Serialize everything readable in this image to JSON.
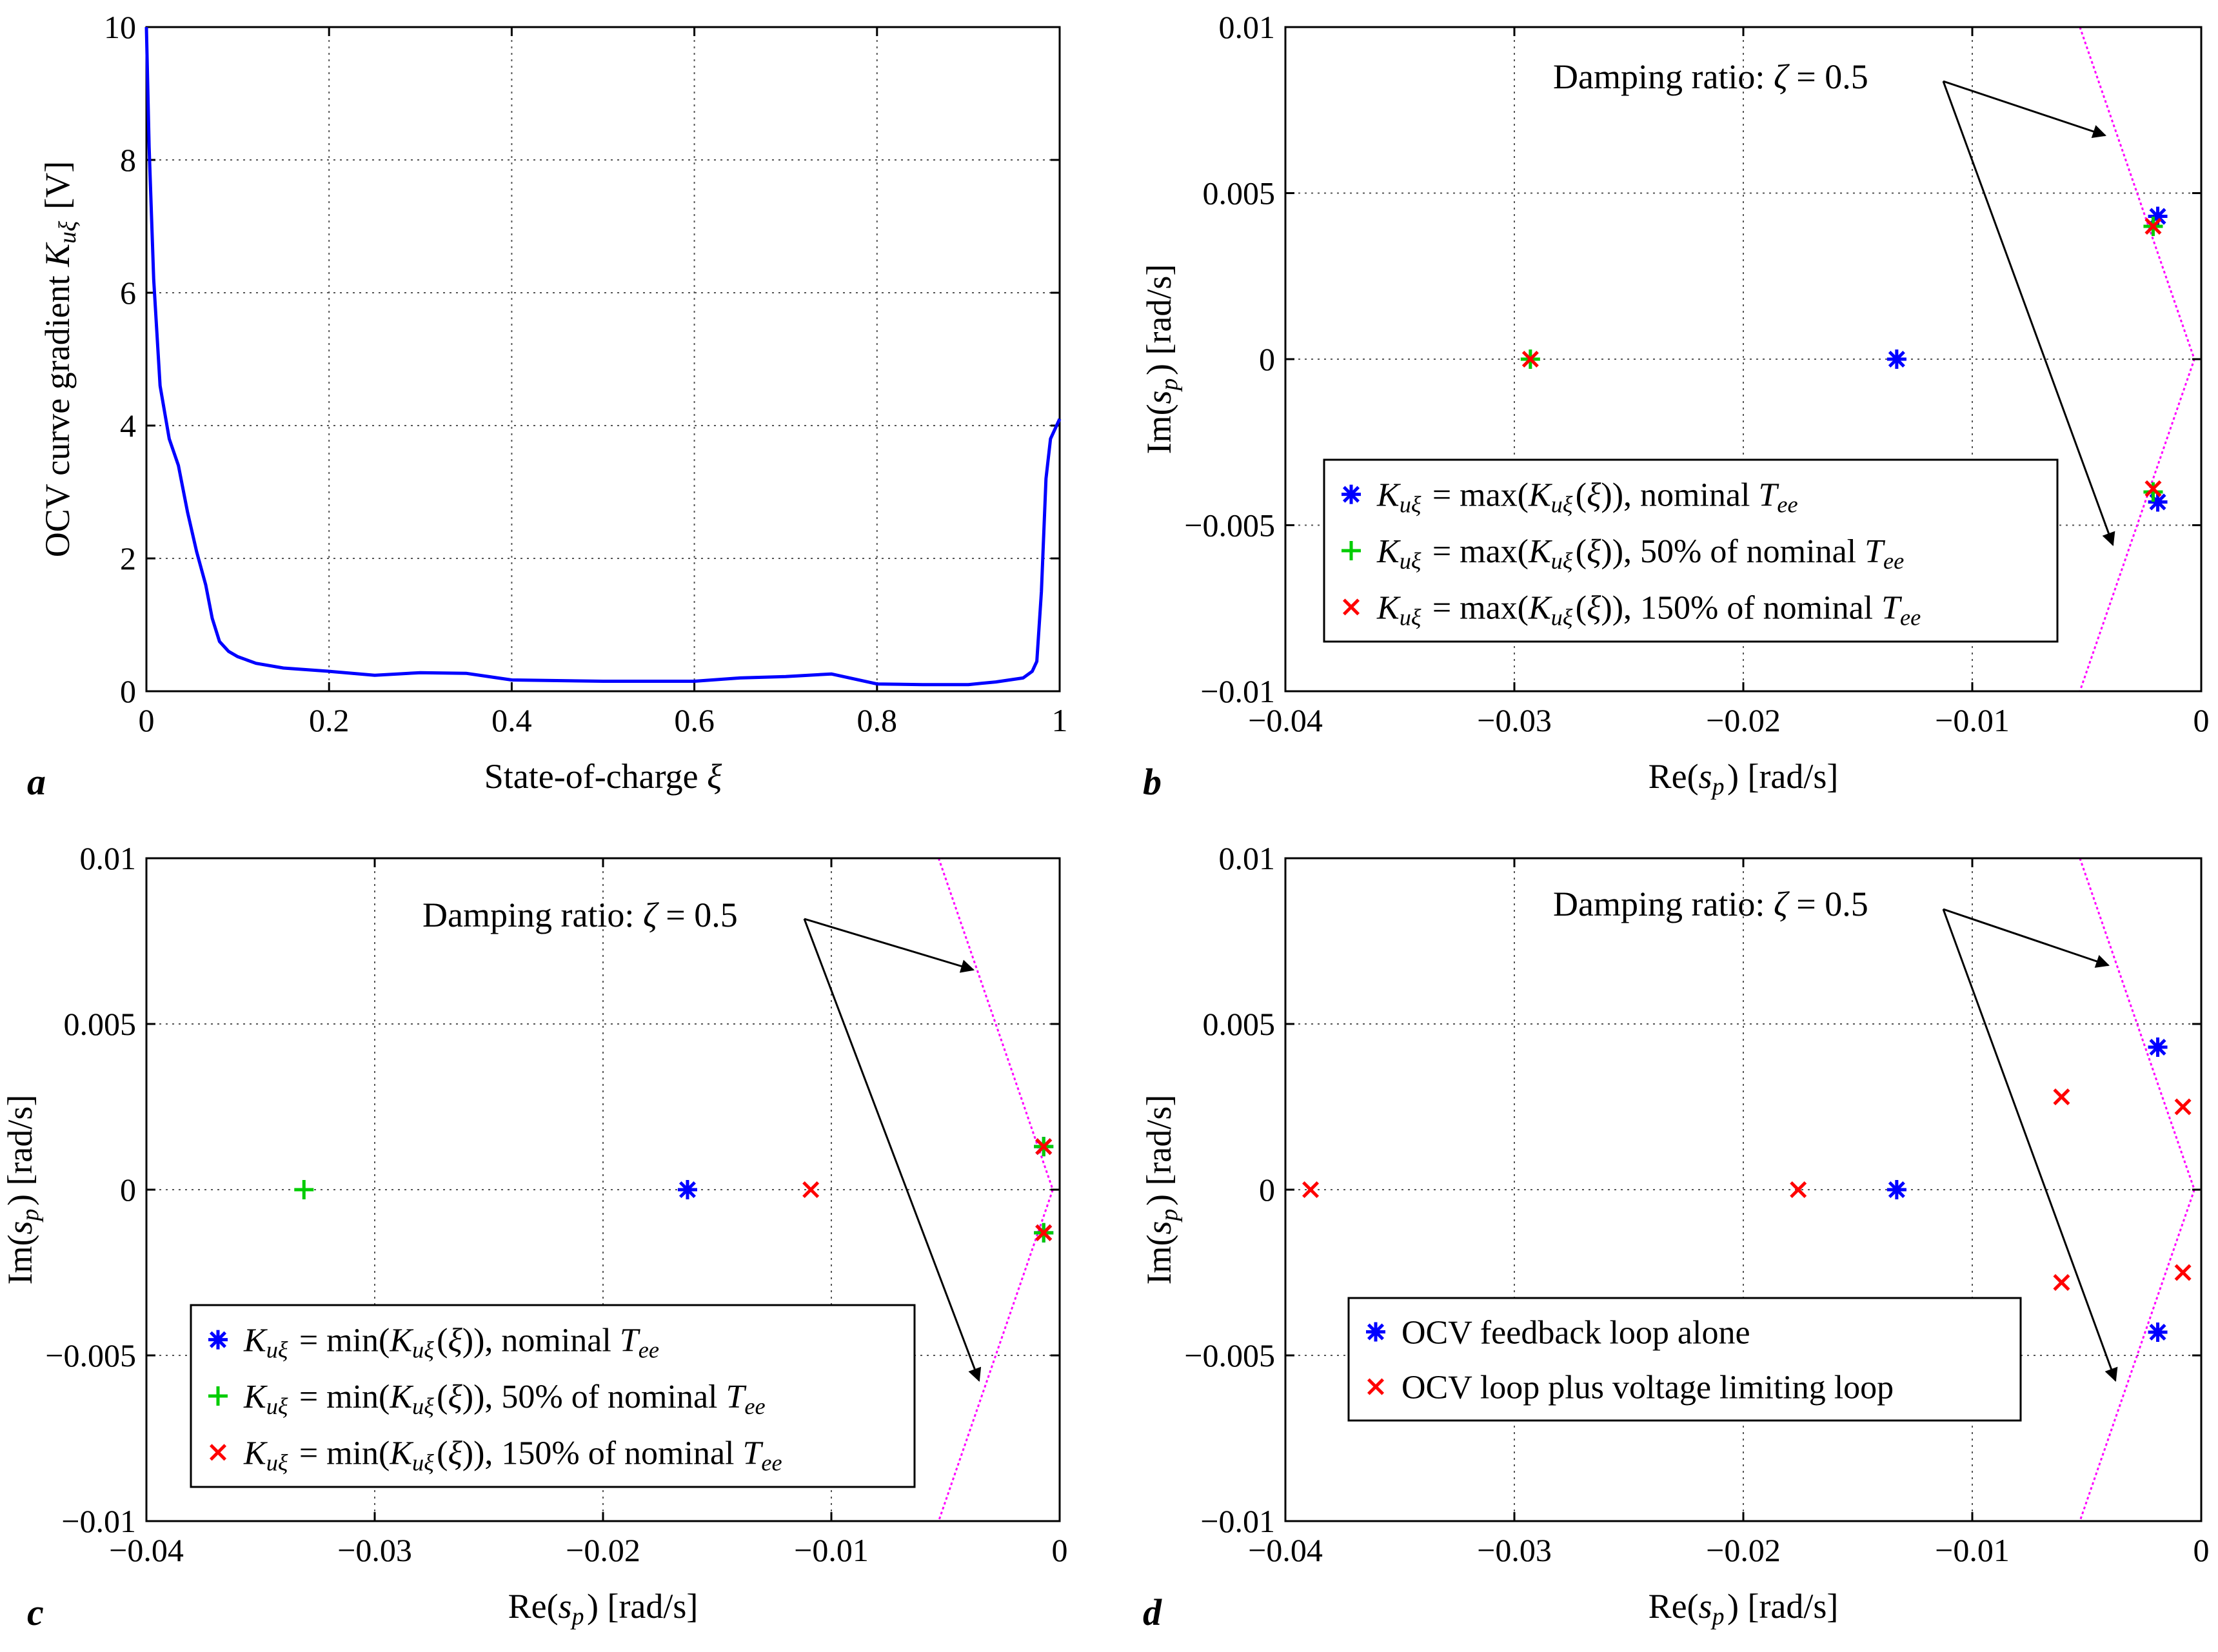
{
  "figure": {
    "panel_labels": [
      "a",
      "b",
      "c",
      "d"
    ]
  },
  "chart_data": [
    {
      "panel": "a",
      "type": "line",
      "xlabel": "State-of-charge ξ",
      "ylabel": "OCV curve gradient K_uξ [V]",
      "xlim": [
        0,
        1
      ],
      "ylim": [
        0,
        10
      ],
      "xticks": [
        0,
        0.2,
        0.4,
        0.6,
        0.8,
        1
      ],
      "xtick_labels": [
        "0",
        "0.2",
        "0.4",
        "0.6",
        "0.8",
        "1"
      ],
      "yticks": [
        0,
        2,
        4,
        6,
        8,
        10
      ],
      "ytick_labels": [
        "0",
        "2",
        "4",
        "6",
        "8",
        "10"
      ],
      "grid": true,
      "series": [
        {
          "color": "#0000ff",
          "x": [
            0,
            0.003,
            0.008,
            0.015,
            0.025,
            0.035,
            0.045,
            0.055,
            0.065,
            0.072,
            0.08,
            0.09,
            0.1,
            0.12,
            0.15,
            0.2,
            0.25,
            0.3,
            0.35,
            0.4,
            0.5,
            0.6,
            0.65,
            0.7,
            0.75,
            0.8,
            0.85,
            0.9,
            0.93,
            0.96,
            0.97,
            0.975,
            0.98,
            0.985,
            0.99,
            1
          ],
          "y": [
            10,
            8.2,
            6.2,
            4.6,
            3.8,
            3.4,
            2.7,
            2.1,
            1.6,
            1.1,
            0.75,
            0.6,
            0.52,
            0.42,
            0.35,
            0.3,
            0.24,
            0.28,
            0.27,
            0.17,
            0.15,
            0.15,
            0.2,
            0.22,
            0.26,
            0.11,
            0.1,
            0.1,
            0.14,
            0.2,
            0.3,
            0.45,
            1.5,
            3.2,
            3.8,
            4.1
          ]
        }
      ]
    },
    {
      "panel": "b",
      "type": "scatter",
      "xlabel": "Re(s_p) [rad/s]",
      "ylabel": "Im(s_p) [rad/s]",
      "xlim": [
        -0.04,
        0
      ],
      "ylim": [
        -0.01,
        0.01
      ],
      "xticks": [
        -0.04,
        -0.03,
        -0.02,
        -0.01,
        0
      ],
      "xtick_labels": [
        "−0.04",
        "−0.03",
        "−0.02",
        "−0.01",
        "0"
      ],
      "yticks": [
        -0.01,
        -0.005,
        0,
        0.005,
        0.01
      ],
      "ytick_labels": [
        "−0.01",
        "−0.005",
        "0",
        "0.005",
        "0.01"
      ],
      "grid": true,
      "annotation": "Damping ratio: ζ = 0.5",
      "damping_line": {
        "color": "#ff00ff",
        "x": [
          -0.0053,
          -0.0003,
          -0.0053
        ],
        "y": [
          0.01,
          0,
          -0.01
        ]
      },
      "legend_position": "lower-right",
      "series": [
        {
          "name": "K_uξ = max(K_uξ(ξ)), nominal T_ee",
          "marker": "asterisk",
          "color": "#0000ff",
          "x": [
            -0.0133,
            -0.0019,
            -0.0019
          ],
          "y": [
            0,
            0.0043,
            -0.0043
          ]
        },
        {
          "name": "K_uξ = max(K_uξ(ξ)), 50% of nominal T_ee",
          "marker": "plus",
          "color": "#00cc00",
          "x": [
            -0.0293,
            -0.0021,
            -0.0021
          ],
          "y": [
            0,
            0.004,
            -0.004
          ]
        },
        {
          "name": "K_uξ = max(K_uξ(ξ)), 150% of nominal T_ee",
          "marker": "cross",
          "color": "#ff0000",
          "x": [
            -0.0293,
            -0.0021,
            -0.0021
          ],
          "y": [
            0,
            0.004,
            -0.0039
          ]
        }
      ]
    },
    {
      "panel": "c",
      "type": "scatter",
      "xlabel": "Re(s_p) [rad/s]",
      "ylabel": "Im(s_p) [rad/s]",
      "xlim": [
        -0.04,
        0
      ],
      "ylim": [
        -0.01,
        0.01
      ],
      "xticks": [
        -0.04,
        -0.03,
        -0.02,
        -0.01,
        0
      ],
      "xtick_labels": [
        "−0.04",
        "−0.03",
        "−0.02",
        "−0.01",
        "0"
      ],
      "yticks": [
        -0.01,
        -0.005,
        0,
        0.005,
        0.01
      ],
      "ytick_labels": [
        "−0.01",
        "−0.005",
        "0",
        "0.005",
        "0.01"
      ],
      "grid": true,
      "annotation": "Damping ratio: ζ = 0.5",
      "damping_line": {
        "color": "#ff00ff",
        "x": [
          -0.0053,
          -0.0003,
          -0.0053
        ],
        "y": [
          0.01,
          0,
          -0.01
        ]
      },
      "legend_position": "lower-left",
      "series": [
        {
          "name": "K_uξ = min(K_uξ(ξ)), nominal T_ee",
          "marker": "asterisk",
          "color": "#0000ff",
          "x": [
            -0.0163,
            -0.0007,
            -0.0007
          ],
          "y": [
            0,
            0.0013,
            -0.0013
          ]
        },
        {
          "name": "K_uξ = min(K_uξ(ξ)), 50% of nominal T_ee",
          "marker": "plus",
          "color": "#00cc00",
          "x": [
            -0.0331,
            -0.0007,
            -0.0007
          ],
          "y": [
            0,
            0.0013,
            -0.0013
          ]
        },
        {
          "name": "K_uξ = min(K_uξ(ξ)), 150% of nominal T_ee",
          "marker": "cross",
          "color": "#ff0000",
          "x": [
            -0.0109,
            -0.0007,
            -0.0007
          ],
          "y": [
            0,
            0.0013,
            -0.0013
          ]
        }
      ]
    },
    {
      "panel": "d",
      "type": "scatter",
      "xlabel": "Re(s_p) [rad/s]",
      "ylabel": "Im(s_p) [rad/s]",
      "xlim": [
        -0.04,
        0
      ],
      "ylim": [
        -0.01,
        0.01
      ],
      "xticks": [
        -0.04,
        -0.03,
        -0.02,
        -0.01,
        0
      ],
      "xtick_labels": [
        "−0.04",
        "−0.03",
        "−0.02",
        "−0.01",
        "0"
      ],
      "yticks": [
        -0.01,
        -0.005,
        0,
        0.005,
        0.01
      ],
      "ytick_labels": [
        "−0.01",
        "−0.005",
        "0",
        "0.005",
        "0.01"
      ],
      "grid": true,
      "annotation": "Damping ratio: ζ = 0.5",
      "damping_line": {
        "color": "#ff00ff",
        "x": [
          -0.0053,
          -0.0003,
          -0.0053
        ],
        "y": [
          0.01,
          0,
          -0.01
        ]
      },
      "legend_position": "lower-center",
      "series": [
        {
          "name": "OCV feedback loop alone",
          "marker": "asterisk",
          "color": "#0000ff",
          "x": [
            -0.0133,
            -0.0019,
            -0.0019
          ],
          "y": [
            0,
            0.0043,
            -0.0043
          ]
        },
        {
          "name": "OCV loop plus voltage limiting loop",
          "marker": "cross",
          "color": "#ff0000",
          "x": [
            -0.0389,
            -0.0176,
            -0.0061,
            -0.0061,
            -0.0008,
            -0.0008
          ],
          "y": [
            0,
            0,
            0.0028,
            -0.0028,
            0.0025,
            -0.0025
          ]
        }
      ]
    }
  ]
}
